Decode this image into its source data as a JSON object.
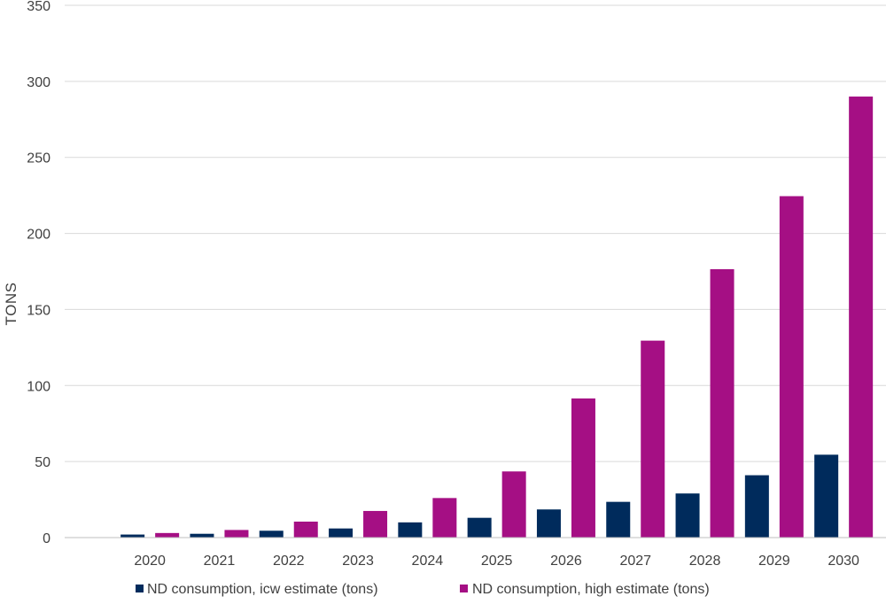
{
  "chart_data": {
    "type": "bar",
    "ylabel": "TONS",
    "ylim": [
      0,
      350
    ],
    "yticks": [
      0,
      50,
      100,
      150,
      200,
      250,
      300,
      350
    ],
    "categories": [
      "2020",
      "2021",
      "2022",
      "2023",
      "2024",
      "2025",
      "2026",
      "2027",
      "2028",
      "2029",
      "2030"
    ],
    "series": [
      {
        "name": "ND consumption, icw estimate (tons)",
        "color": "#002b5c",
        "values": [
          2,
          2.5,
          4.5,
          6,
          10,
          13,
          18.5,
          23.5,
          29,
          41,
          54.5
        ]
      },
      {
        "name": "ND consumption, high estimate (tons)",
        "color": "#a50f84",
        "values": [
          3,
          5,
          10.5,
          17.5,
          26,
          43.5,
          91.5,
          129.5,
          176.5,
          224.5,
          290
        ]
      }
    ],
    "grid": true,
    "legend_position": "bottom"
  }
}
